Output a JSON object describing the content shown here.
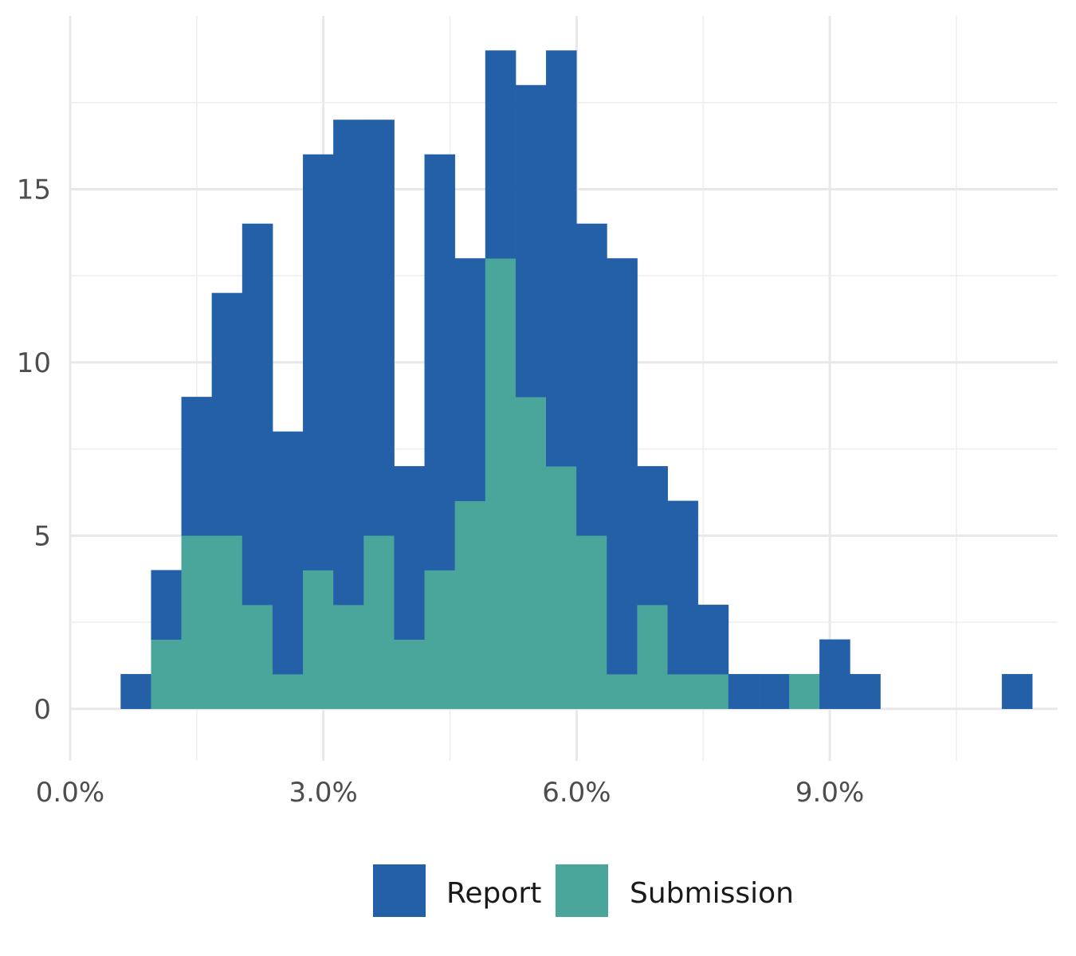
{
  "chart_data": {
    "type": "bar",
    "stacked": true,
    "x_unit": "percent",
    "bin_width": 0.36,
    "bin_starts": [
      0.6,
      0.96,
      1.32,
      1.68,
      2.04,
      2.4,
      2.76,
      3.12,
      3.48,
      3.84,
      4.2,
      4.56,
      4.92,
      5.28,
      5.64,
      6.0,
      6.36,
      6.72,
      7.08,
      7.44,
      7.8,
      8.16,
      8.52,
      8.88,
      9.24,
      11.04
    ],
    "series": [
      {
        "name": "Report",
        "color": "#2360A8",
        "values": [
          1,
          2,
          4,
          7,
          11,
          7,
          12,
          14,
          12,
          5,
          12,
          7,
          6,
          9,
          12,
          9,
          12,
          4,
          5,
          2,
          1,
          1,
          0,
          2,
          1,
          1
        ]
      },
      {
        "name": "Submission",
        "color": "#4AA59B",
        "values": [
          0,
          2,
          5,
          5,
          3,
          1,
          4,
          3,
          5,
          2,
          4,
          6,
          13,
          9,
          7,
          5,
          1,
          3,
          1,
          1,
          0,
          0,
          1,
          0,
          0,
          0
        ]
      }
    ],
    "xlim": [
      0,
      11.7
    ],
    "ylim": [
      -1.5,
      20
    ],
    "x_ticks": [
      0,
      3,
      6,
      9
    ],
    "x_tick_labels": [
      "0.0%",
      "3.0%",
      "6.0%",
      "9.0%"
    ],
    "y_ticks": [
      0,
      5,
      10,
      15
    ],
    "y_tick_labels": [
      "0",
      "5",
      "10",
      "15"
    ],
    "grid": true,
    "legend_position": "bottom",
    "title": "",
    "xlabel": "",
    "ylabel": ""
  }
}
